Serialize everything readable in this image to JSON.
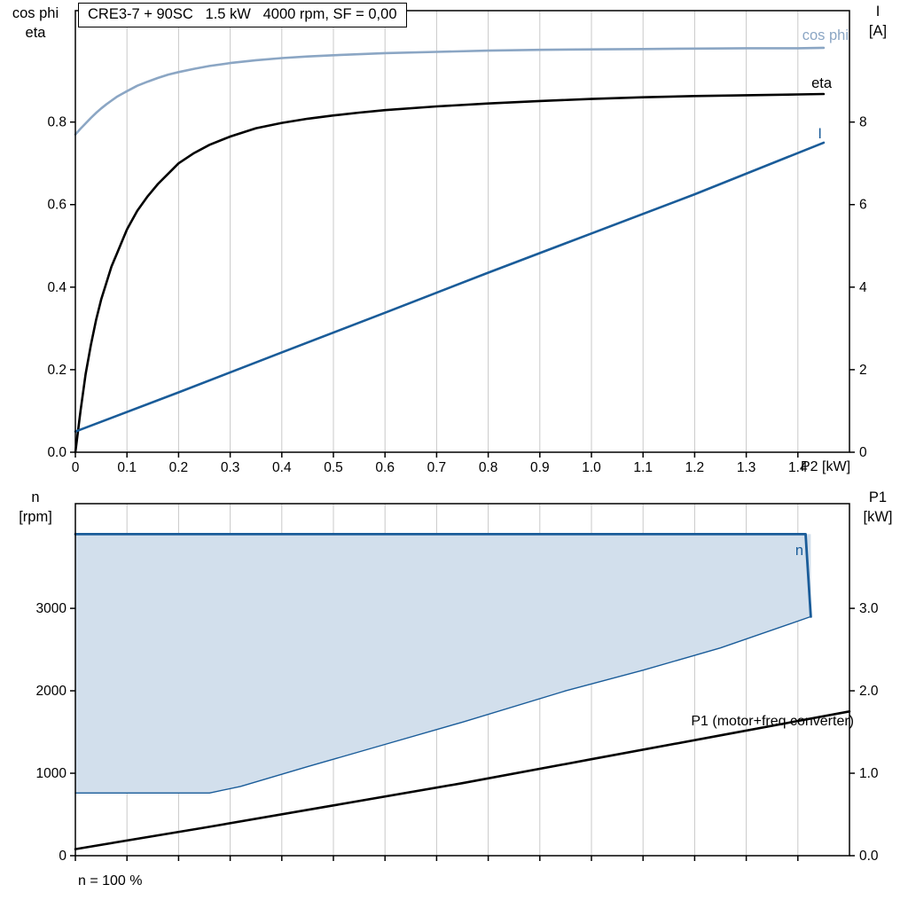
{
  "title_box": {
    "text": "CRE3-7 + 90SC   1.5 kW   4000 rpm, SF = 0,00"
  },
  "colors": {
    "grid": "#c9c9c9",
    "frame": "#000000",
    "cos_phi": "#8ba6c4",
    "eta": "#000000",
    "current": "#1a5c99",
    "envelope_fill": "#d2dfec",
    "envelope_line": "#1a5c99",
    "p1": "#000000"
  },
  "top_chart": {
    "y_left_title_line1": "cos phi",
    "y_left_title_line2": "eta",
    "y_right_title_line1": "I",
    "y_right_title_line2": "[A]",
    "x_axis_label": "P2 [kW]",
    "curve_label_cos_phi": "cos phi",
    "curve_label_eta": "eta",
    "curve_label_current": "I"
  },
  "bottom_chart": {
    "y_left_title_line1": "n",
    "y_left_title_line2": "[rpm]",
    "y_right_title_line1": "P1",
    "y_right_title_line2": "[kW]",
    "curve_label_n": "n",
    "curve_label_p1": "P1 (motor+freq converter)",
    "footer": "n = 100 %"
  },
  "chart_data": [
    {
      "type": "line",
      "title": "CRE3-7 + 90SC 1.5 kW 4000 rpm, SF = 0,00",
      "xlabel": "P2 [kW]",
      "xlim": [
        0,
        1.5
      ],
      "x_ticks": [
        0,
        0.1,
        0.2,
        0.3,
        0.4,
        0.5,
        0.6,
        0.7,
        0.8,
        0.9,
        1.0,
        1.1,
        1.2,
        1.3,
        1.4
      ],
      "x_tick_labels": [
        "0",
        "0.1",
        "0.2",
        "0.3",
        "0.4",
        "0.5",
        "0.6",
        "0.7",
        "0.8",
        "0.9",
        "1.0",
        "1.1",
        "1.2",
        "1.3",
        "1.4"
      ],
      "grid": "vertical",
      "legend": "labels-at-right",
      "y_left": {
        "label": "cos phi / eta",
        "lim": [
          0,
          1.07
        ],
        "ticks": [
          0,
          0.2,
          0.4,
          0.6,
          0.8
        ],
        "tick_labels": [
          "0.0",
          "0.2",
          "0.4",
          "0.6",
          "0.8"
        ]
      },
      "y_right": {
        "label": "I [A]",
        "lim": [
          0,
          10.7
        ],
        "ticks": [
          0,
          2,
          4,
          6,
          8
        ],
        "tick_labels": [
          "0",
          "2",
          "4",
          "6",
          "8"
        ]
      },
      "series": [
        {
          "name": "cos-phi-curve",
          "axis": "left",
          "color": "#8ba6c4",
          "width": 2.6,
          "points": [
            [
              0,
              0.77
            ],
            [
              0.005,
              0.777
            ],
            [
              0.01,
              0.784
            ],
            [
              0.02,
              0.797
            ],
            [
              0.03,
              0.81
            ],
            [
              0.04,
              0.822
            ],
            [
              0.05,
              0.833
            ],
            [
              0.06,
              0.843
            ],
            [
              0.07,
              0.852
            ],
            [
              0.08,
              0.861
            ],
            [
              0.09,
              0.868
            ],
            [
              0.1,
              0.875
            ],
            [
              0.12,
              0.888
            ],
            [
              0.14,
              0.898
            ],
            [
              0.16,
              0.907
            ],
            [
              0.18,
              0.915
            ],
            [
              0.2,
              0.921
            ],
            [
              0.23,
              0.929
            ],
            [
              0.26,
              0.936
            ],
            [
              0.3,
              0.943
            ],
            [
              0.35,
              0.95
            ],
            [
              0.4,
              0.955
            ],
            [
              0.45,
              0.959
            ],
            [
              0.5,
              0.962
            ],
            [
              0.6,
              0.967
            ],
            [
              0.7,
              0.97
            ],
            [
              0.8,
              0.973
            ],
            [
              0.9,
              0.975
            ],
            [
              1.0,
              0.976
            ],
            [
              1.1,
              0.977
            ],
            [
              1.2,
              0.978
            ],
            [
              1.3,
              0.979
            ],
            [
              1.4,
              0.979
            ],
            [
              1.45,
              0.98
            ]
          ]
        },
        {
          "name": "eta-curve",
          "axis": "left",
          "color": "#000000",
          "width": 2.6,
          "points": [
            [
              0,
              0
            ],
            [
              0.005,
              0.05
            ],
            [
              0.01,
              0.1
            ],
            [
              0.02,
              0.19
            ],
            [
              0.03,
              0.26
            ],
            [
              0.04,
              0.32
            ],
            [
              0.05,
              0.37
            ],
            [
              0.06,
              0.41
            ],
            [
              0.07,
              0.45
            ],
            [
              0.08,
              0.48
            ],
            [
              0.09,
              0.51
            ],
            [
              0.1,
              0.54
            ],
            [
              0.12,
              0.585
            ],
            [
              0.14,
              0.62
            ],
            [
              0.16,
              0.65
            ],
            [
              0.18,
              0.675
            ],
            [
              0.2,
              0.7
            ],
            [
              0.23,
              0.725
            ],
            [
              0.26,
              0.745
            ],
            [
              0.3,
              0.765
            ],
            [
              0.35,
              0.785
            ],
            [
              0.4,
              0.798
            ],
            [
              0.45,
              0.808
            ],
            [
              0.5,
              0.816
            ],
            [
              0.55,
              0.823
            ],
            [
              0.6,
              0.829
            ],
            [
              0.7,
              0.838
            ],
            [
              0.8,
              0.845
            ],
            [
              0.9,
              0.851
            ],
            [
              1.0,
              0.856
            ],
            [
              1.1,
              0.86
            ],
            [
              1.2,
              0.863
            ],
            [
              1.3,
              0.865
            ],
            [
              1.4,
              0.867
            ],
            [
              1.45,
              0.868
            ]
          ]
        },
        {
          "name": "current-curve",
          "axis": "right",
          "color": "#1a5c99",
          "width": 2.6,
          "points": [
            [
              0,
              0.5
            ],
            [
              0.2,
              1.45
            ],
            [
              0.4,
              2.42
            ],
            [
              0.6,
              3.38
            ],
            [
              0.8,
              4.35
            ],
            [
              1.0,
              5.3
            ],
            [
              1.2,
              6.25
            ],
            [
              1.45,
              7.5
            ]
          ]
        }
      ]
    },
    {
      "type": "line",
      "title": "",
      "xlabel": "",
      "xlim": [
        0,
        1.5
      ],
      "x_ticks": [
        0,
        0.1,
        0.2,
        0.3,
        0.4,
        0.5,
        0.6,
        0.7,
        0.8,
        0.9,
        1.0,
        1.1,
        1.2,
        1.3,
        1.4
      ],
      "x_tick_labels": [],
      "grid": "vertical",
      "y_left": {
        "label": "n [rpm]",
        "lim": [
          0,
          4270
        ],
        "ticks": [
          0,
          1000,
          2000,
          3000
        ],
        "tick_labels": [
          "0",
          "1000",
          "2000",
          "3000"
        ]
      },
      "y_right": {
        "label": "P1 [kW]",
        "lim": [
          0,
          4.27
        ],
        "ticks": [
          0,
          1,
          2,
          3
        ],
        "tick_labels": [
          "0.0",
          "1.0",
          "2.0",
          "3.0"
        ]
      },
      "series": [
        {
          "name": "operating-envelope-fill",
          "axis": "left",
          "fill": "#d2dfec",
          "points": [
            [
              0,
              760
            ],
            [
              0.26,
              760
            ],
            [
              0.32,
              840
            ],
            [
              0.45,
              1080
            ],
            [
              0.6,
              1350
            ],
            [
              0.75,
              1620
            ],
            [
              0.95,
              2000
            ],
            [
              1.1,
              2250
            ],
            [
              1.25,
              2520
            ],
            [
              1.425,
              2900
            ],
            [
              1.425,
              3900
            ],
            [
              0,
              3900
            ]
          ]
        },
        {
          "name": "envelope-lower-boundary",
          "axis": "left",
          "color": "#1a5c99",
          "width": 1.4,
          "points": [
            [
              0,
              760
            ],
            [
              0.26,
              760
            ],
            [
              0.32,
              840
            ],
            [
              0.45,
              1080
            ],
            [
              0.6,
              1350
            ],
            [
              0.75,
              1620
            ],
            [
              0.95,
              2000
            ],
            [
              1.1,
              2250
            ],
            [
              1.25,
              2520
            ],
            [
              1.425,
              2900
            ]
          ]
        },
        {
          "name": "n-max-speed-curve",
          "axis": "left",
          "color": "#1a5c99",
          "width": 2.8,
          "points": [
            [
              0,
              3900
            ],
            [
              1.415,
              3900
            ],
            [
              1.425,
              2900
            ]
          ]
        },
        {
          "name": "p1-curve",
          "axis": "right",
          "color": "#000000",
          "width": 2.6,
          "points": [
            [
              0,
              0.08
            ],
            [
              0.25,
              0.34
            ],
            [
              0.5,
              0.61
            ],
            [
              0.75,
              0.88
            ],
            [
              1.0,
              1.17
            ],
            [
              1.25,
              1.46
            ],
            [
              1.5,
              1.75
            ]
          ]
        }
      ],
      "annotations": [
        "n",
        "P1 (motor+freq converter)",
        "n = 100 %"
      ]
    }
  ]
}
